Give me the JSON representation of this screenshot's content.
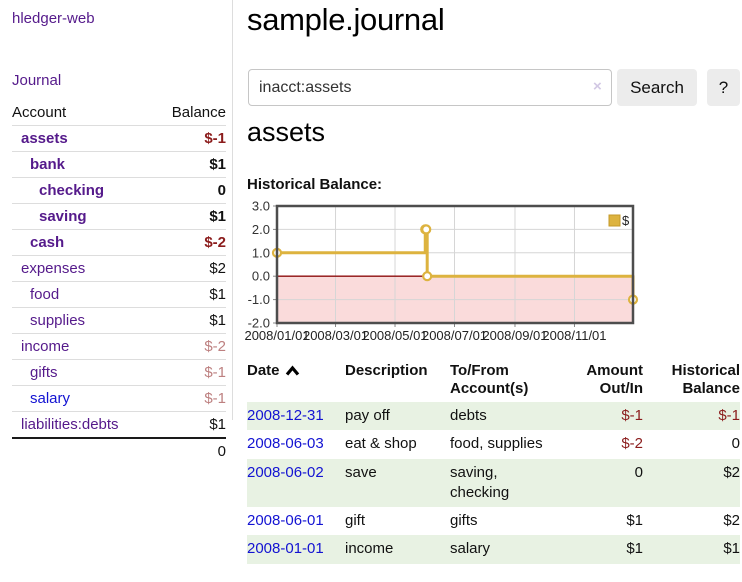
{
  "app": {
    "title": "hledger-web"
  },
  "sidebar": {
    "journal_link": "Journal",
    "accounts_table": {
      "headers": [
        "Account",
        "Balance"
      ],
      "rows": [
        {
          "name": "assets",
          "indent": 1,
          "bold": true,
          "link_color": "purple",
          "balance": "$-1",
          "balance_style": "negative-strong"
        },
        {
          "name": "bank",
          "indent": 2,
          "bold": true,
          "link_color": "purple",
          "balance": "$1",
          "balance_style": "normal"
        },
        {
          "name": "checking",
          "indent": 3,
          "bold": true,
          "link_color": "purple",
          "balance": "0",
          "balance_style": "normal"
        },
        {
          "name": "saving",
          "indent": 3,
          "bold": true,
          "link_color": "purple",
          "balance": "$1",
          "balance_style": "normal"
        },
        {
          "name": "cash",
          "indent": 2,
          "bold": true,
          "link_color": "purple",
          "balance": "$-2",
          "balance_style": "negative-strong"
        },
        {
          "name": "expenses",
          "indent": 1,
          "bold": false,
          "link_color": "purple",
          "balance": "$2",
          "balance_style": "normal"
        },
        {
          "name": "food",
          "indent": 2,
          "bold": false,
          "link_color": "purple",
          "balance": "$1",
          "balance_style": "normal"
        },
        {
          "name": "supplies",
          "indent": 2,
          "bold": false,
          "link_color": "purple",
          "balance": "$1",
          "balance_style": "normal"
        },
        {
          "name": "income",
          "indent": 1,
          "bold": false,
          "link_color": "purple",
          "balance": "$-2",
          "balance_style": "negative-soft"
        },
        {
          "name": "gifts",
          "indent": 2,
          "bold": false,
          "link_color": "purple",
          "balance": "$-1",
          "balance_style": "negative-soft"
        },
        {
          "name": "salary",
          "indent": 2,
          "bold": false,
          "link_color": "blue",
          "balance": "$-1",
          "balance_style": "negative-soft"
        },
        {
          "name": "liabilities:debts",
          "indent": 1,
          "bold": false,
          "link_color": "purple",
          "balance": "$1",
          "balance_style": "normal"
        }
      ],
      "total": "0"
    }
  },
  "header": {
    "title": "sample.journal"
  },
  "search": {
    "value": "inacct:assets",
    "clear_icon": "×",
    "button_label": "Search",
    "help_label": "?"
  },
  "account_page": {
    "title": "assets",
    "chart_label": "Historical Balance:"
  },
  "chart_data": {
    "type": "line",
    "style": "step-after",
    "title": "Historical Balance:",
    "series": [
      {
        "name": "$",
        "points": [
          [
            "2008-01-01",
            1
          ],
          [
            "2008-06-01",
            2
          ],
          [
            "2008-06-02",
            2
          ],
          [
            "2008-06-03",
            0
          ],
          [
            "2008-12-31",
            -1
          ]
        ]
      }
    ],
    "x_range": [
      "2008-01-01",
      "2008-12-31"
    ],
    "ylim": [
      -2.0,
      3.0
    ],
    "y_ticks": [
      "3.0",
      "2.0",
      "1.0",
      "0.0",
      "-1.0",
      "-2.0"
    ],
    "x_tick_labels": [
      "2008/01/01",
      "2008/03/01",
      "2008/05/01",
      "2008/07/01",
      "2008/09/01",
      "2008/11/01"
    ],
    "legend": {
      "label": "$",
      "position": "top-right"
    },
    "grid": true,
    "colors": {
      "line": "#ddb33f",
      "marker_fill": "#ffffff",
      "negative_fill": "#fadbdb",
      "zero_line": "#8f0e0e",
      "grid": "#d6d6d6",
      "border": "#4d4d4d",
      "tick": "#888888",
      "axis_text": "#333333"
    }
  },
  "register_table": {
    "headers": [
      "Date",
      "Description",
      "To/From Account(s)",
      "Amount Out/In",
      "Historical Balance"
    ],
    "sort_icon": "chevron-up",
    "rows": [
      {
        "date": "2008-12-31",
        "description": "pay off",
        "accounts": "debts",
        "amount": "$-1",
        "amount_negative": true,
        "balance": "$-1",
        "balance_negative": true
      },
      {
        "date": "2008-06-03",
        "description": "eat & shop",
        "accounts": "food, supplies",
        "amount": "$-2",
        "amount_negative": true,
        "balance": "0",
        "balance_negative": false
      },
      {
        "date": "2008-06-02",
        "description": "save",
        "accounts": "saving, checking",
        "amount": "0",
        "amount_negative": false,
        "balance": "$2",
        "balance_negative": false
      },
      {
        "date": "2008-06-01",
        "description": "gift",
        "accounts": "gifts",
        "amount": "$1",
        "amount_negative": false,
        "balance": "$2",
        "balance_negative": false
      },
      {
        "date": "2008-01-01",
        "description": "income",
        "accounts": "salary",
        "amount": "$1",
        "amount_negative": false,
        "balance": "$1",
        "balance_negative": false
      }
    ]
  },
  "colors": {
    "link_purple": "#551a8b",
    "link_blue": "#1313d2",
    "negative_strong": "#8b1c1c",
    "negative_soft": "#bd8080",
    "row_stripe_green": "#e8f2e3"
  }
}
